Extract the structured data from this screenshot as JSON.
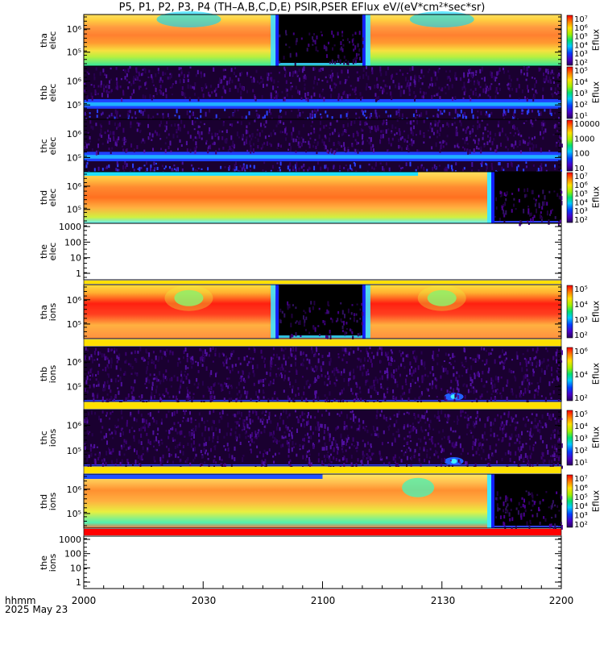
{
  "title": "P5, P1, P2, P3, P4 (TH–A,B,C,D,E) PSIR,PSER EFlux eV/(eV*cm²*sec*sr)",
  "x_axis": {
    "label_line1": "hhmm",
    "label_line2": "2025 May 23",
    "ticks": [
      "2000",
      "2030",
      "2100",
      "2130",
      "2200"
    ]
  },
  "chart_data": {
    "type": "heatmap",
    "xlim": [
      "20:00",
      "22:00"
    ],
    "panels": [
      {
        "probe": "tha",
        "species": "elec",
        "ylabel": "tha\nelec",
        "yticks": [
          "10⁵",
          "10⁶"
        ],
        "cbar_label": "Eflux",
        "cbar_ticks": [
          "10²",
          "10³",
          "10⁴",
          "10⁵",
          "10⁶",
          "10⁷"
        ],
        "gap": [
          "20:49",
          "21:10"
        ],
        "style": "elec_magnetosphere"
      },
      {
        "probe": "thb",
        "species": "elec",
        "ylabel": "thb\nelec",
        "yticks": [
          "10⁵",
          "10⁶"
        ],
        "cbar_label": "Eflux",
        "cbar_ticks": [
          "10¹",
          "10²",
          "10³",
          "10⁴",
          "10⁵"
        ],
        "style": "noise_band"
      },
      {
        "probe": "thc",
        "species": "elec",
        "ylabel": "thc\nelec",
        "yticks": [
          "10⁵",
          "10⁶"
        ],
        "cbar_label": "",
        "cbar_ticks": [
          "10",
          "100",
          "1000",
          "10000"
        ],
        "style": "noise_band"
      },
      {
        "probe": "thd",
        "species": "elec",
        "ylabel": "thd\nelec",
        "yticks": [
          "10⁵",
          "10⁶"
        ],
        "cbar_label": "Eflux",
        "cbar_ticks": [
          "10²",
          "10³",
          "10⁴",
          "10⁵",
          "10⁶",
          "10⁷"
        ],
        "gap": [
          "21:43",
          "22:00"
        ],
        "style": "elec_long"
      },
      {
        "probe": "the",
        "species": "elec",
        "ylabel": "the\nelec",
        "yticks": [
          "1",
          "10",
          "100",
          "1000"
        ],
        "style": "empty"
      },
      {
        "probe": "tha",
        "species": "ions",
        "ylabel": "tha\nions",
        "yticks": [
          "10⁵",
          "10⁶"
        ],
        "cbar_label": "Eflux",
        "cbar_ticks": [
          "10²",
          "10³",
          "10⁴",
          "10⁵"
        ],
        "gap": [
          "20:49",
          "21:10"
        ],
        "style": "ions_magnetosphere"
      },
      {
        "probe": "thb",
        "species": "ions",
        "ylabel": "thb\nions",
        "yticks": [
          "10⁵",
          "10⁶"
        ],
        "cbar_label": "Eflux",
        "cbar_ticks": [
          "10²",
          "10⁴",
          "10⁶"
        ],
        "style": "noise_ions"
      },
      {
        "probe": "thc",
        "species": "ions",
        "ylabel": "thc\nions",
        "yticks": [
          "10⁵",
          "10⁶"
        ],
        "cbar_label": "Eflux",
        "cbar_ticks": [
          "10¹",
          "10²",
          "10³",
          "10⁴",
          "10⁵"
        ],
        "style": "noise_ions"
      },
      {
        "probe": "thd",
        "species": "ions",
        "ylabel": "thd\nions",
        "yticks": [
          "10⁵",
          "10⁶"
        ],
        "cbar_label": "Eflux",
        "cbar_ticks": [
          "10²",
          "10³",
          "10⁴",
          "10⁵",
          "10⁶",
          "10⁷"
        ],
        "gap": [
          "21:43",
          "22:00"
        ],
        "style": "ions_long"
      },
      {
        "probe": "the",
        "species": "ions",
        "ylabel": "the\nions",
        "yticks": [
          "1",
          "10",
          "100",
          "1000"
        ],
        "style": "empty"
      }
    ]
  }
}
